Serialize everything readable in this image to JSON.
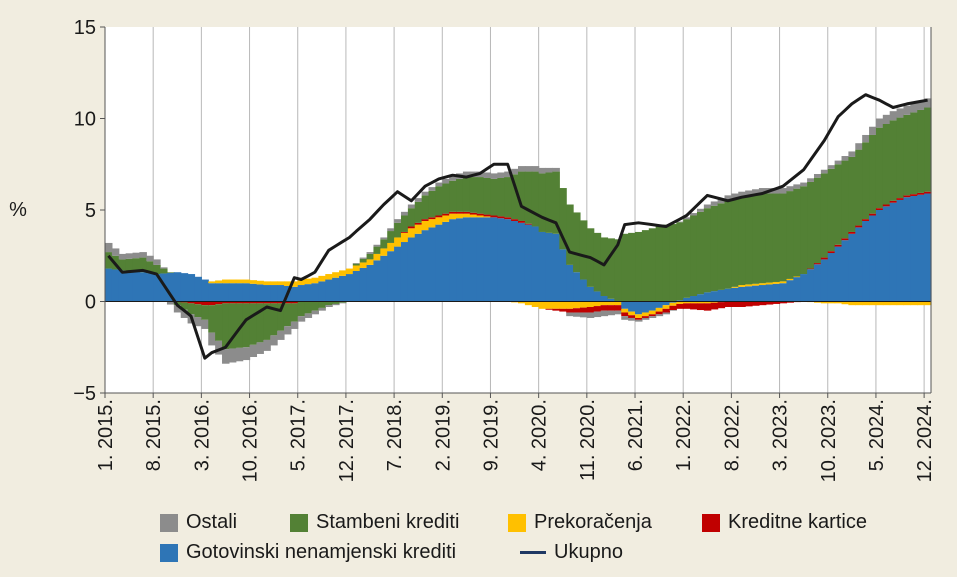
{
  "chart_data": {
    "type": "area",
    "ylabel": "%",
    "ylim": [
      -5,
      15
    ],
    "yticks": [
      -5,
      0,
      5,
      10,
      15
    ],
    "ytick_labels": [
      "−5",
      "0",
      "5",
      "10",
      "15"
    ],
    "x_tick_labels": [
      "1. 2015.",
      "8. 2015.",
      "3. 2016.",
      "10. 2016.",
      "5. 2017.",
      "12. 2017.",
      "7. 2018.",
      "2. 2019.",
      "9. 2019.",
      "4. 2020.",
      "11. 2020.",
      "6. 2021.",
      "1. 2022.",
      "8. 2022.",
      "3. 2023.",
      "10. 2023.",
      "5. 2024.",
      "12. 2024."
    ],
    "x_tick_months": [
      0,
      7,
      14,
      21,
      28,
      35,
      42,
      49,
      56,
      63,
      70,
      77,
      84,
      91,
      98,
      105,
      112,
      119
    ],
    "start": "2015-01",
    "end": "2024-12",
    "grid": "vertical",
    "key_months": [
      0,
      2,
      5,
      7,
      10,
      12,
      14,
      15,
      17,
      20,
      23,
      25,
      27,
      28,
      30,
      32,
      35,
      38,
      40,
      42,
      44,
      46,
      48,
      50,
      52,
      54,
      56,
      58,
      60,
      62,
      63,
      65,
      67,
      70,
      72,
      74,
      75,
      77,
      79,
      81,
      84,
      87,
      90,
      92,
      95,
      98,
      101,
      104,
      106,
      108,
      110,
      112,
      114,
      116,
      119
    ],
    "series": [
      {
        "name": "Gotovinski nenamjenski krediti",
        "color": "#2e75b6",
        "values": [
          1.8,
          1.7,
          1.6,
          1.5,
          1.6,
          1.5,
          1.2,
          1.0,
          1.0,
          1.0,
          0.9,
          0.9,
          0.8,
          0.9,
          1.0,
          1.2,
          1.5,
          2.0,
          2.5,
          3.0,
          3.5,
          3.9,
          4.2,
          4.5,
          4.6,
          4.6,
          4.6,
          4.5,
          4.3,
          4.1,
          3.8,
          3.7,
          2.0,
          0.8,
          0.3,
          0.0,
          -0.4,
          -0.7,
          -0.5,
          -0.2,
          0.2,
          0.5,
          0.7,
          0.8,
          0.9,
          1.0,
          1.5,
          2.3,
          3.0,
          3.7,
          4.4,
          5.0,
          5.4,
          5.7,
          5.9
        ]
      },
      {
        "name": "Prekoračenja",
        "color": "#ffc000",
        "values": [
          0.0,
          0.0,
          0.0,
          0.0,
          0.0,
          0.0,
          0.0,
          0.1,
          0.2,
          0.2,
          0.2,
          0.2,
          0.3,
          0.3,
          0.3,
          0.3,
          0.3,
          0.3,
          0.4,
          0.5,
          0.5,
          0.5,
          0.4,
          0.3,
          0.2,
          0.1,
          0.0,
          0.0,
          -0.1,
          -0.3,
          -0.4,
          -0.4,
          -0.4,
          -0.3,
          -0.2,
          -0.2,
          -0.2,
          -0.2,
          -0.2,
          -0.2,
          -0.1,
          -0.1,
          0.0,
          0.1,
          0.1,
          0.1,
          0.0,
          -0.1,
          -0.1,
          -0.2,
          -0.2,
          -0.2,
          -0.2,
          -0.2,
          -0.2
        ]
      },
      {
        "name": "Kreditne kartice",
        "color": "#c00000",
        "values": [
          0.0,
          0.0,
          0.0,
          0.0,
          0.0,
          -0.1,
          -0.2,
          -0.2,
          -0.1,
          -0.1,
          -0.1,
          -0.1,
          -0.1,
          0.0,
          0.0,
          0.0,
          0.0,
          0.0,
          0.0,
          0.0,
          0.1,
          0.1,
          0.1,
          0.1,
          0.1,
          0.1,
          0.1,
          0.1,
          0.1,
          0.0,
          0.0,
          -0.1,
          -0.2,
          -0.3,
          -0.3,
          -0.3,
          -0.2,
          -0.1,
          -0.1,
          -0.2,
          -0.3,
          -0.4,
          -0.3,
          -0.3,
          -0.2,
          -0.1,
          0.0,
          0.1,
          0.1,
          0.1,
          0.1,
          0.1,
          0.1,
          0.1,
          0.1
        ]
      },
      {
        "name": "Stambeni krediti",
        "color": "#538135",
        "values": [
          0.9,
          0.6,
          0.8,
          0.5,
          -0.2,
          -0.6,
          -0.8,
          -1.5,
          -2.5,
          -2.4,
          -2.0,
          -1.5,
          -1.0,
          -0.8,
          -0.5,
          -0.2,
          0.0,
          0.3,
          0.5,
          0.8,
          1.0,
          1.3,
          1.6,
          1.7,
          1.9,
          2.0,
          2.0,
          2.2,
          2.7,
          3.0,
          3.2,
          3.4,
          3.3,
          3.2,
          3.2,
          3.4,
          3.7,
          3.8,
          4.0,
          4.2,
          4.3,
          4.6,
          4.8,
          4.8,
          4.9,
          4.8,
          4.8,
          4.6,
          4.4,
          4.1,
          4.2,
          4.4,
          4.4,
          4.4,
          4.6
        ]
      },
      {
        "name": "Ostali",
        "color": "#8c8c8c",
        "values": [
          0.5,
          0.3,
          0.3,
          0.3,
          -0.4,
          -0.5,
          -0.5,
          -0.7,
          -0.8,
          -0.7,
          -0.6,
          -0.5,
          -0.4,
          -0.3,
          -0.2,
          -0.1,
          0.0,
          0.1,
          0.1,
          0.2,
          0.2,
          0.2,
          0.2,
          0.3,
          0.3,
          0.3,
          0.3,
          0.3,
          0.3,
          0.3,
          0.3,
          0.2,
          -0.2,
          -0.3,
          -0.3,
          -0.2,
          -0.2,
          -0.1,
          -0.1,
          -0.1,
          0.1,
          0.2,
          0.3,
          0.3,
          0.3,
          0.3,
          0.2,
          0.2,
          0.2,
          0.3,
          0.4,
          0.5,
          0.5,
          0.5,
          0.5
        ]
      },
      {
        "name": "Ukupno",
        "color": "#1a1a1a",
        "values": [
          2.5,
          1.6,
          1.7,
          1.5,
          -0.2,
          -0.8,
          -3.1,
          -2.8,
          -2.5,
          -1.0,
          -0.3,
          -0.5,
          1.3,
          1.2,
          1.6,
          2.8,
          3.5,
          4.5,
          5.3,
          6.0,
          5.5,
          6.3,
          6.7,
          6.9,
          6.8,
          7.0,
          7.5,
          7.5,
          5.2,
          4.8,
          4.6,
          4.3,
          2.7,
          2.4,
          2.0,
          3.1,
          4.2,
          4.3,
          4.2,
          4.1,
          4.7,
          5.8,
          5.5,
          5.7,
          5.9,
          6.3,
          7.2,
          8.8,
          10.1,
          10.8,
          11.3,
          11.0,
          10.6,
          10.8,
          11.0
        ]
      }
    ]
  }
}
